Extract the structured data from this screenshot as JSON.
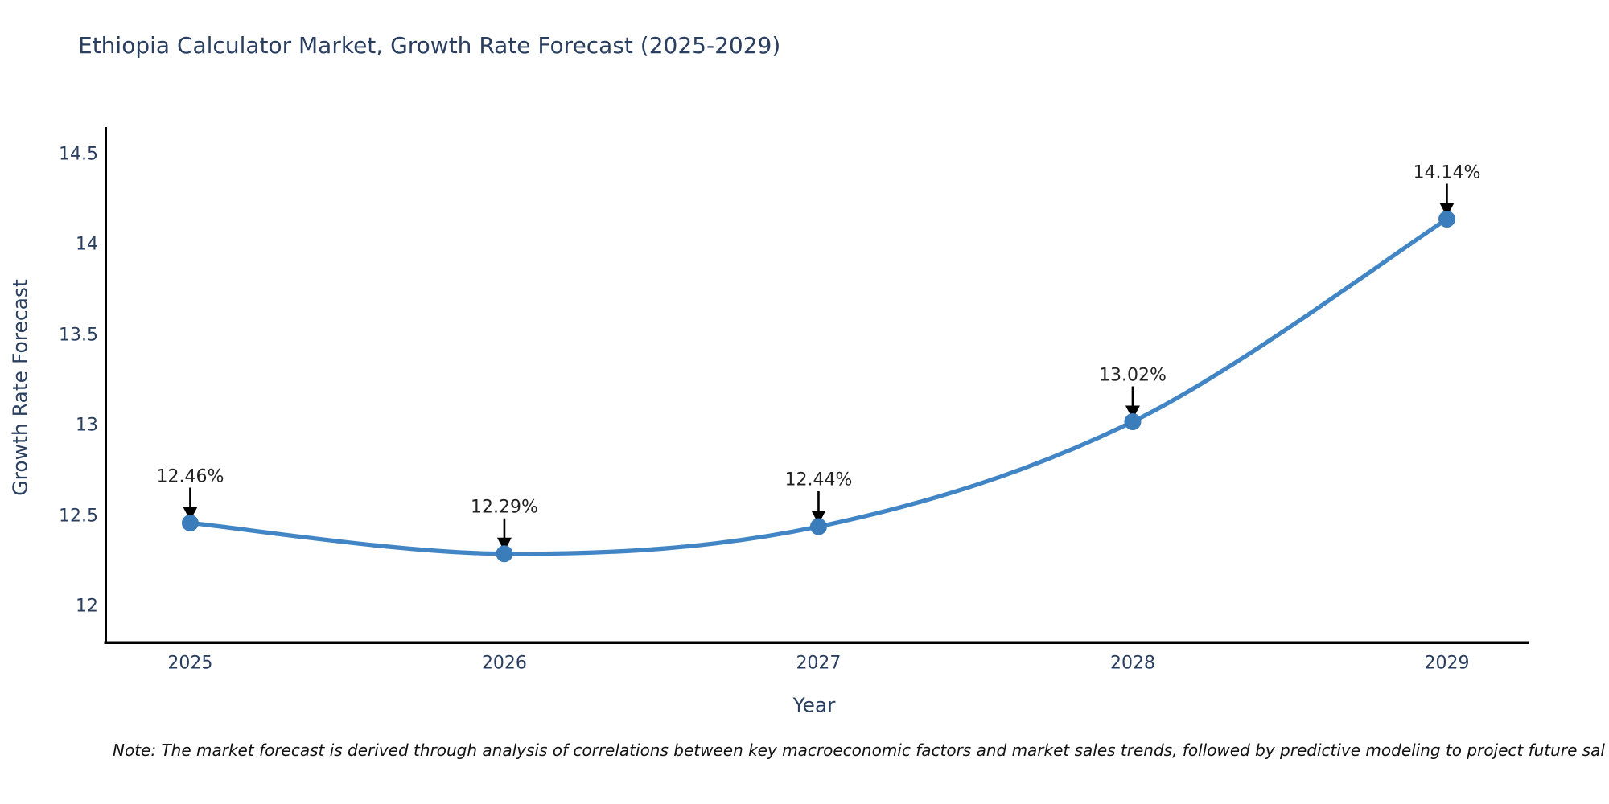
{
  "title": "Ethiopia Calculator Market, Growth Rate Forecast (2025-2029)",
  "note": "Note: The market forecast is derived through analysis of correlations between key macroeconomic factors and market sales trends, followed by predictive modeling to project future sal",
  "chart_data": {
    "type": "line",
    "title": "Ethiopia Calculator Market, Growth Rate Forecast (2025-2029)",
    "xlabel": "Year",
    "ylabel": "Growth Rate Forecast",
    "x": [
      2025,
      2026,
      2027,
      2028,
      2029
    ],
    "series": [
      {
        "name": "Growth Rate Forecast",
        "values": [
          12.46,
          12.29,
          12.44,
          13.02,
          14.14
        ]
      }
    ],
    "point_labels": [
      "12.46%",
      "12.29%",
      "12.44%",
      "13.02%",
      "14.14%"
    ],
    "xtick_labels": [
      "2025",
      "2026",
      "2027",
      "2028",
      "2029"
    ],
    "ytick_values": [
      14.5,
      14,
      13.5,
      13,
      12.5,
      12
    ],
    "ytick_labels": [
      "14.5",
      "14",
      "13.5",
      "13",
      "12.5",
      "12"
    ],
    "xlim": [
      2024.73,
      2029.26
    ],
    "ylim": [
      11.8,
      14.64
    ],
    "grid": false,
    "legend": "none",
    "line_shape": "spline",
    "colors": {
      "line": "#4285c4",
      "marker": "#3b7cba",
      "arrow": "#000000",
      "axis_line": "#000000",
      "title_text": "#2a3f5f",
      "tick_text": "#2a3f5f",
      "annotation_text": "#222222",
      "note_text": "#111111",
      "background": "#ffffff"
    }
  }
}
